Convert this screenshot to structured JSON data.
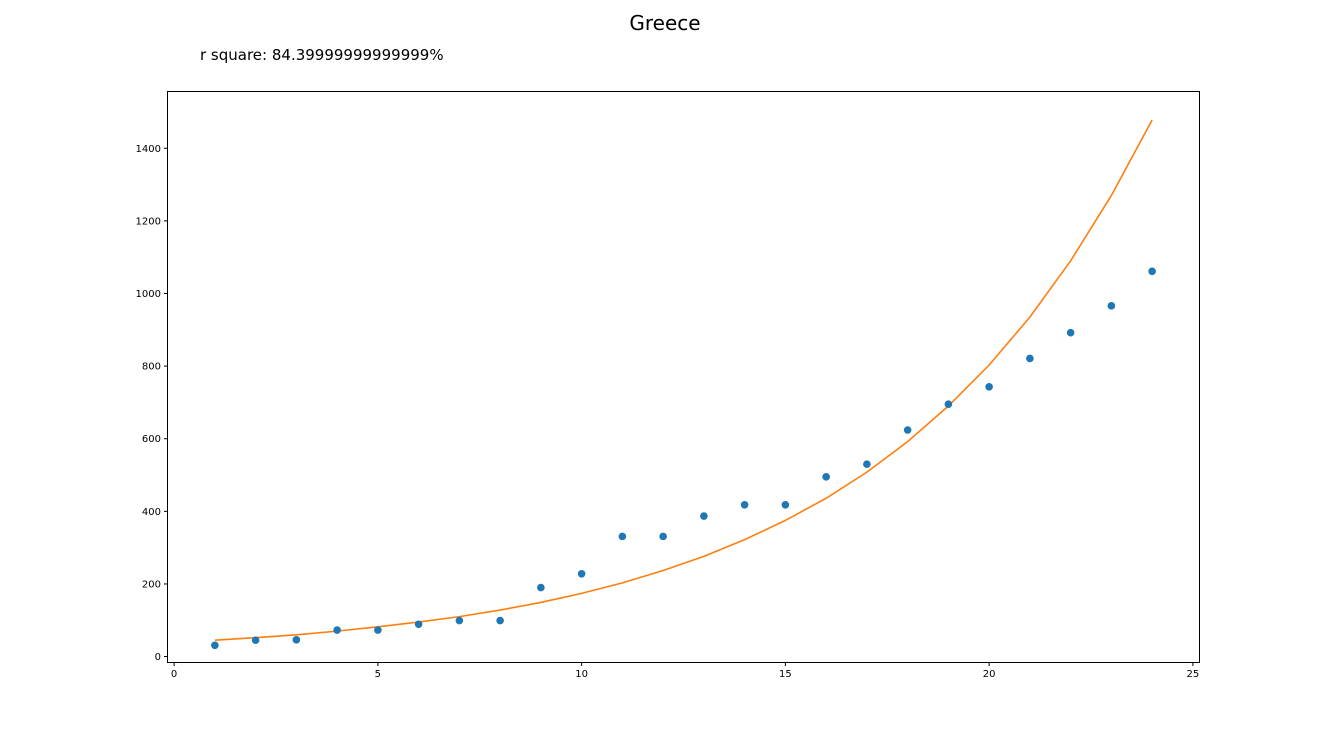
{
  "chart_data": {
    "type": "scatter",
    "title": "Greece",
    "subtitle": "r square: 84.39999999999999%",
    "xlim": [
      -0.15,
      25.15
    ],
    "ylim": [
      -15,
      1555
    ],
    "x_ticks": [
      0,
      5,
      10,
      15,
      20,
      25
    ],
    "y_ticks": [
      0,
      200,
      400,
      600,
      800,
      1000,
      1200,
      1400
    ],
    "grid": false,
    "colors": {
      "points": "#1f77b4",
      "fit": "#ff7f0e"
    },
    "series": [
      {
        "type": "scatter",
        "x": [
          1,
          2,
          3,
          4,
          5,
          6,
          7,
          8,
          9,
          10,
          11,
          12,
          13,
          14,
          15,
          16,
          17,
          18,
          19,
          20,
          21,
          22,
          23,
          24
        ],
        "y": [
          31,
          45,
          46,
          73,
          73,
          89,
          99,
          99,
          190,
          228,
          331,
          331,
          387,
          418,
          418,
          495,
          530,
          624,
          695,
          743,
          821,
          892,
          966,
          1061
        ]
      },
      {
        "type": "line",
        "x": [
          1,
          2,
          3,
          4,
          5,
          6,
          7,
          8,
          9,
          10,
          11,
          12,
          13,
          14,
          15,
          16,
          17,
          18,
          19,
          20,
          21,
          22,
          23,
          24
        ],
        "y": [
          45,
          52,
          60,
          70,
          82,
          95,
          110,
          128,
          149,
          174,
          203,
          237,
          276,
          322,
          375,
          436,
          508,
          592,
          690,
          803,
          935,
          1090,
          1270,
          1478
        ]
      }
    ]
  }
}
